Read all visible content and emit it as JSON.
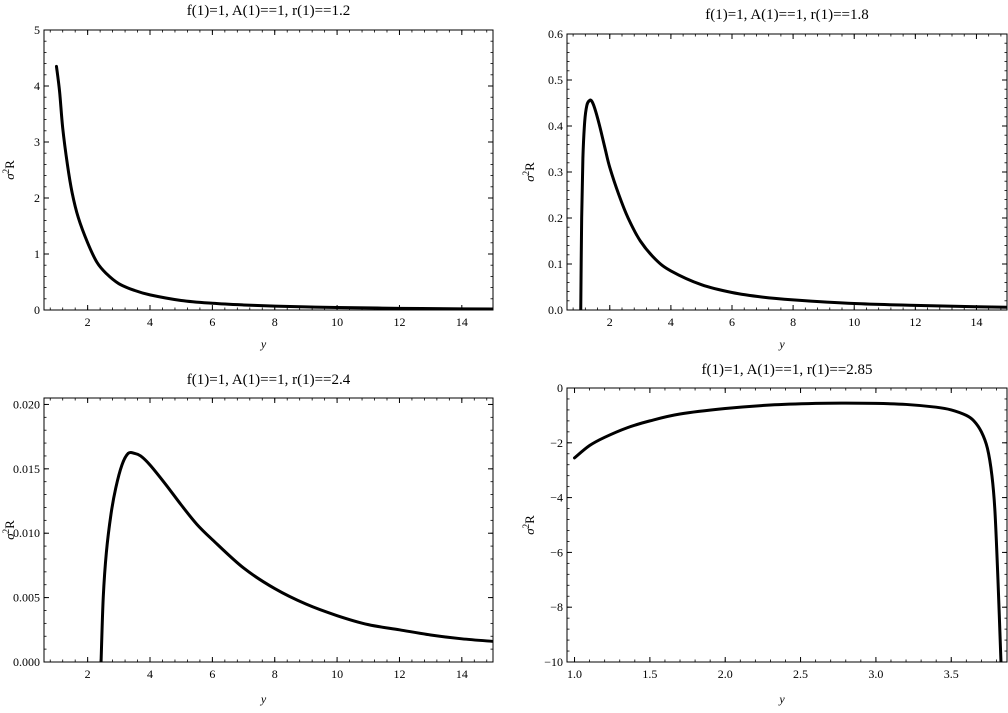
{
  "chart_data": [
    {
      "type": "line",
      "title": "f(1)=1, A(1)==1, r(1)==1.2",
      "xlabel": "y",
      "ylabel": "σ²R",
      "ylabel_parts": {
        "sym": "σ",
        "sup": "2",
        "rest": "R"
      },
      "xlim": [
        0.6,
        15
      ],
      "ylim": [
        0,
        5
      ],
      "x_ticks": [
        2,
        4,
        6,
        8,
        10,
        12,
        14
      ],
      "x_tick_labels": [
        "2",
        "4",
        "6",
        "8",
        "10",
        "12",
        "14"
      ],
      "y_ticks": [
        0,
        1,
        2,
        3,
        4,
        5
      ],
      "y_tick_labels": [
        "0",
        "1",
        "2",
        "3",
        "4",
        "5"
      ],
      "grid": false,
      "series": [
        {
          "x": [
            1.0,
            1.1,
            1.2,
            1.35,
            1.5,
            1.7,
            2.0,
            2.3,
            2.6,
            3.0,
            3.5,
            4.0,
            5.0,
            6.0,
            7.0,
            8.0,
            9.0,
            10.0,
            12.0,
            14.0,
            15.0
          ],
          "y": [
            4.35,
            3.9,
            3.25,
            2.6,
            2.1,
            1.65,
            1.2,
            0.85,
            0.65,
            0.47,
            0.35,
            0.27,
            0.17,
            0.12,
            0.09,
            0.07,
            0.055,
            0.045,
            0.03,
            0.02,
            0.018
          ]
        }
      ]
    },
    {
      "type": "line",
      "title": "f(1)=1, A(1)==1, r(1)==1.8",
      "xlabel": "y",
      "ylabel": "σ²R",
      "ylabel_parts": {
        "sym": "σ",
        "sup": "2",
        "rest": "R"
      },
      "xlim": [
        0.6,
        15
      ],
      "ylim": [
        0,
        0.6
      ],
      "x_ticks": [
        2,
        4,
        6,
        8,
        10,
        12,
        14
      ],
      "x_tick_labels": [
        "2",
        "4",
        "6",
        "8",
        "10",
        "12",
        "14"
      ],
      "y_ticks": [
        0,
        0.1,
        0.2,
        0.3,
        0.4,
        0.5,
        0.6
      ],
      "y_tick_labels": [
        "0.0",
        "0.1",
        "0.2",
        "0.3",
        "0.4",
        "0.5",
        "0.6"
      ],
      "grid": false,
      "series": [
        {
          "x": [
            1.05,
            1.08,
            1.12,
            1.18,
            1.25,
            1.33,
            1.4,
            1.5,
            1.65,
            1.85,
            2.0,
            2.3,
            2.6,
            3.0,
            3.5,
            4.0,
            5.0,
            6.0,
            7.0,
            8.0,
            10.0,
            12.0,
            14.0,
            15.0
          ],
          "y": [
            0.0,
            0.2,
            0.33,
            0.41,
            0.445,
            0.455,
            0.455,
            0.44,
            0.405,
            0.35,
            0.31,
            0.25,
            0.2,
            0.15,
            0.11,
            0.085,
            0.055,
            0.038,
            0.028,
            0.022,
            0.014,
            0.01,
            0.007,
            0.006
          ]
        }
      ]
    },
    {
      "type": "line",
      "title": "f(1)=1, A(1)==1, r(1)==2.4",
      "xlabel": "y",
      "ylabel": "σ²R",
      "ylabel_parts": {
        "sym": "σ",
        "sup": "2",
        "rest": "R"
      },
      "xlim": [
        0.6,
        15
      ],
      "ylim": [
        0,
        0.0205
      ],
      "x_ticks": [
        2,
        4,
        6,
        8,
        10,
        12,
        14
      ],
      "x_tick_labels": [
        "2",
        "4",
        "6",
        "8",
        "10",
        "12",
        "14"
      ],
      "y_ticks": [
        0,
        0.005,
        0.01,
        0.015,
        0.02
      ],
      "y_tick_labels": [
        "0.000",
        "0.005",
        "0.010",
        "0.015",
        "0.020"
      ],
      "grid": false,
      "series": [
        {
          "x": [
            2.43,
            2.5,
            2.6,
            2.75,
            2.9,
            3.1,
            3.3,
            3.5,
            3.7,
            4.0,
            4.5,
            5.0,
            5.5,
            6.0,
            7.0,
            8.0,
            9.0,
            10.0,
            11.0,
            12.0,
            13.0,
            14.0,
            15.0
          ],
          "y": [
            0.0,
            0.005,
            0.0085,
            0.0115,
            0.0135,
            0.0153,
            0.0162,
            0.0162,
            0.016,
            0.0153,
            0.0138,
            0.0122,
            0.0107,
            0.0095,
            0.0073,
            0.0057,
            0.0045,
            0.0036,
            0.0029,
            0.0025,
            0.0021,
            0.0018,
            0.0016
          ]
        }
      ]
    },
    {
      "type": "line",
      "title": "f(1)=1, A(1)==1, r(1)==2.85",
      "xlabel": "y",
      "ylabel": "σ²R",
      "ylabel_parts": {
        "sym": "σ",
        "sup": "2",
        "rest": "R"
      },
      "xlim": [
        0.95,
        3.87
      ],
      "ylim": [
        -10,
        0
      ],
      "x_ticks": [
        1.0,
        1.5,
        2.0,
        2.5,
        3.0,
        3.5
      ],
      "x_tick_labels": [
        "1.0",
        "1.5",
        "2.0",
        "2.5",
        "3.0",
        "3.5"
      ],
      "y_ticks": [
        -10,
        -8,
        -6,
        -4,
        -2,
        0
      ],
      "y_tick_labels": [
        "−10",
        "−8",
        "−6",
        "−4",
        "−2",
        "0"
      ],
      "grid": false,
      "series": [
        {
          "x": [
            1.0,
            1.1,
            1.2,
            1.35,
            1.5,
            1.7,
            2.0,
            2.3,
            2.6,
            2.8,
            3.0,
            3.2,
            3.4,
            3.5,
            3.6,
            3.65,
            3.7,
            3.74,
            3.77,
            3.79,
            3.81,
            3.83
          ],
          "y": [
            -2.55,
            -2.1,
            -1.8,
            -1.45,
            -1.2,
            -0.95,
            -0.75,
            -0.62,
            -0.56,
            -0.55,
            -0.56,
            -0.6,
            -0.7,
            -0.8,
            -1.0,
            -1.2,
            -1.6,
            -2.2,
            -3.2,
            -4.5,
            -7.0,
            -10.0
          ]
        }
      ]
    }
  ]
}
